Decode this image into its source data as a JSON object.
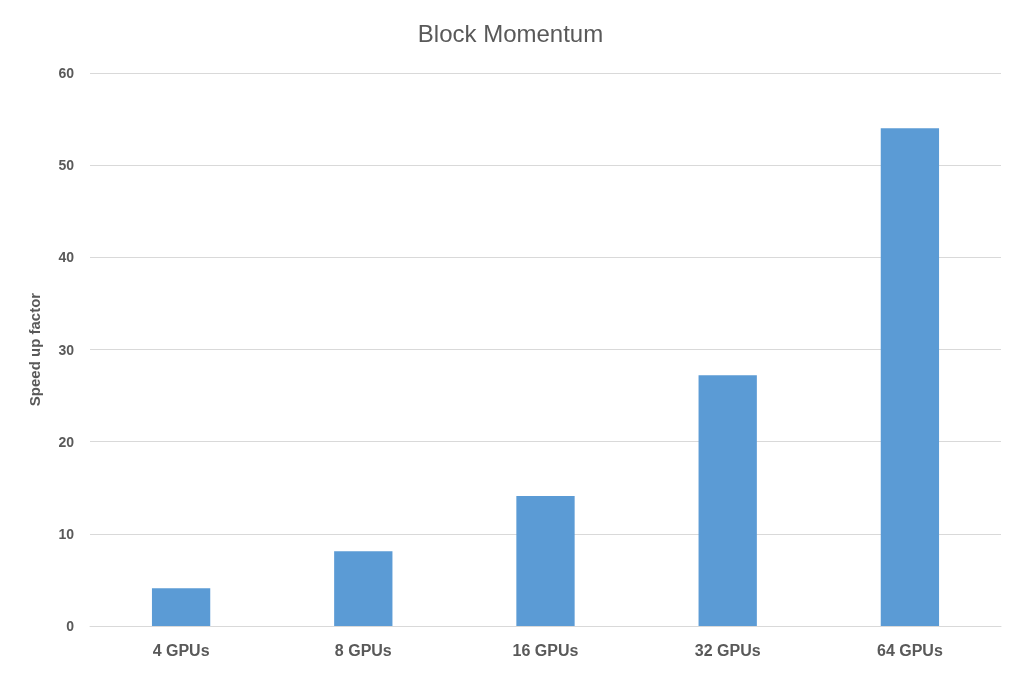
{
  "chart_data": {
    "type": "bar",
    "title": "Block Momentum",
    "ylabel": "Speed up factor",
    "categories": [
      "4 GPUs",
      "8 GPUs",
      "16 GPUs",
      "32 GPUs",
      "64 GPUs"
    ],
    "values": [
      4.1,
      8.1,
      14.1,
      27.2,
      54
    ],
    "color": "#5b9bd5",
    "ylim": [
      0,
      60
    ],
    "yticks": [
      0,
      10,
      20,
      30,
      40,
      50,
      60
    ],
    "grid": "y"
  }
}
